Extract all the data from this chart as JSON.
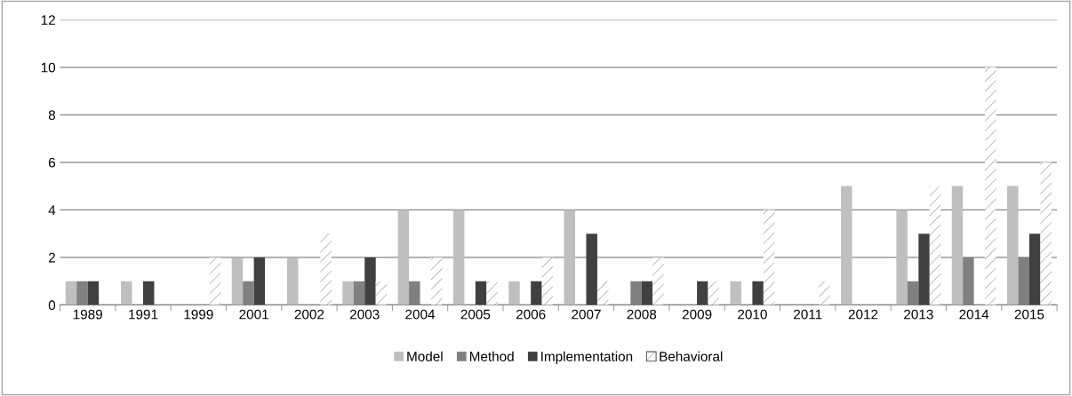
{
  "chart_data": {
    "type": "bar",
    "categories": [
      "1989",
      "1991",
      "1999",
      "2001",
      "2002",
      "2003",
      "2004",
      "2005",
      "2006",
      "2007",
      "2008",
      "2009",
      "2010",
      "2011",
      "2012",
      "2013",
      "2014",
      "2015"
    ],
    "series": [
      {
        "name": "Model",
        "color": "#bfbfbf",
        "values": [
          1,
          1,
          0,
          2,
          2,
          1,
          4,
          4,
          1,
          4,
          0,
          0,
          1,
          0,
          5,
          4,
          5,
          5
        ]
      },
      {
        "name": "Method",
        "color": "#808080",
        "values": [
          1,
          0,
          0,
          1,
          0,
          1,
          1,
          0,
          0,
          0,
          1,
          0,
          0,
          0,
          0,
          1,
          2,
          2
        ]
      },
      {
        "name": "Implementation",
        "color": "#404040",
        "values": [
          1,
          1,
          0,
          2,
          0,
          2,
          0,
          1,
          1,
          3,
          1,
          1,
          1,
          0,
          0,
          3,
          0,
          3
        ]
      },
      {
        "name": "Behavioral",
        "color": "#ffffff",
        "values": [
          0,
          0,
          2,
          0,
          3,
          1,
          2,
          1,
          2,
          1,
          2,
          1,
          4,
          1,
          0,
          5,
          10,
          6
        ]
      }
    ],
    "ylim": [
      0,
      12
    ],
    "yticks": [
      0,
      2,
      4,
      6,
      8,
      10,
      12
    ],
    "grid": "y",
    "legend": "bottom"
  }
}
